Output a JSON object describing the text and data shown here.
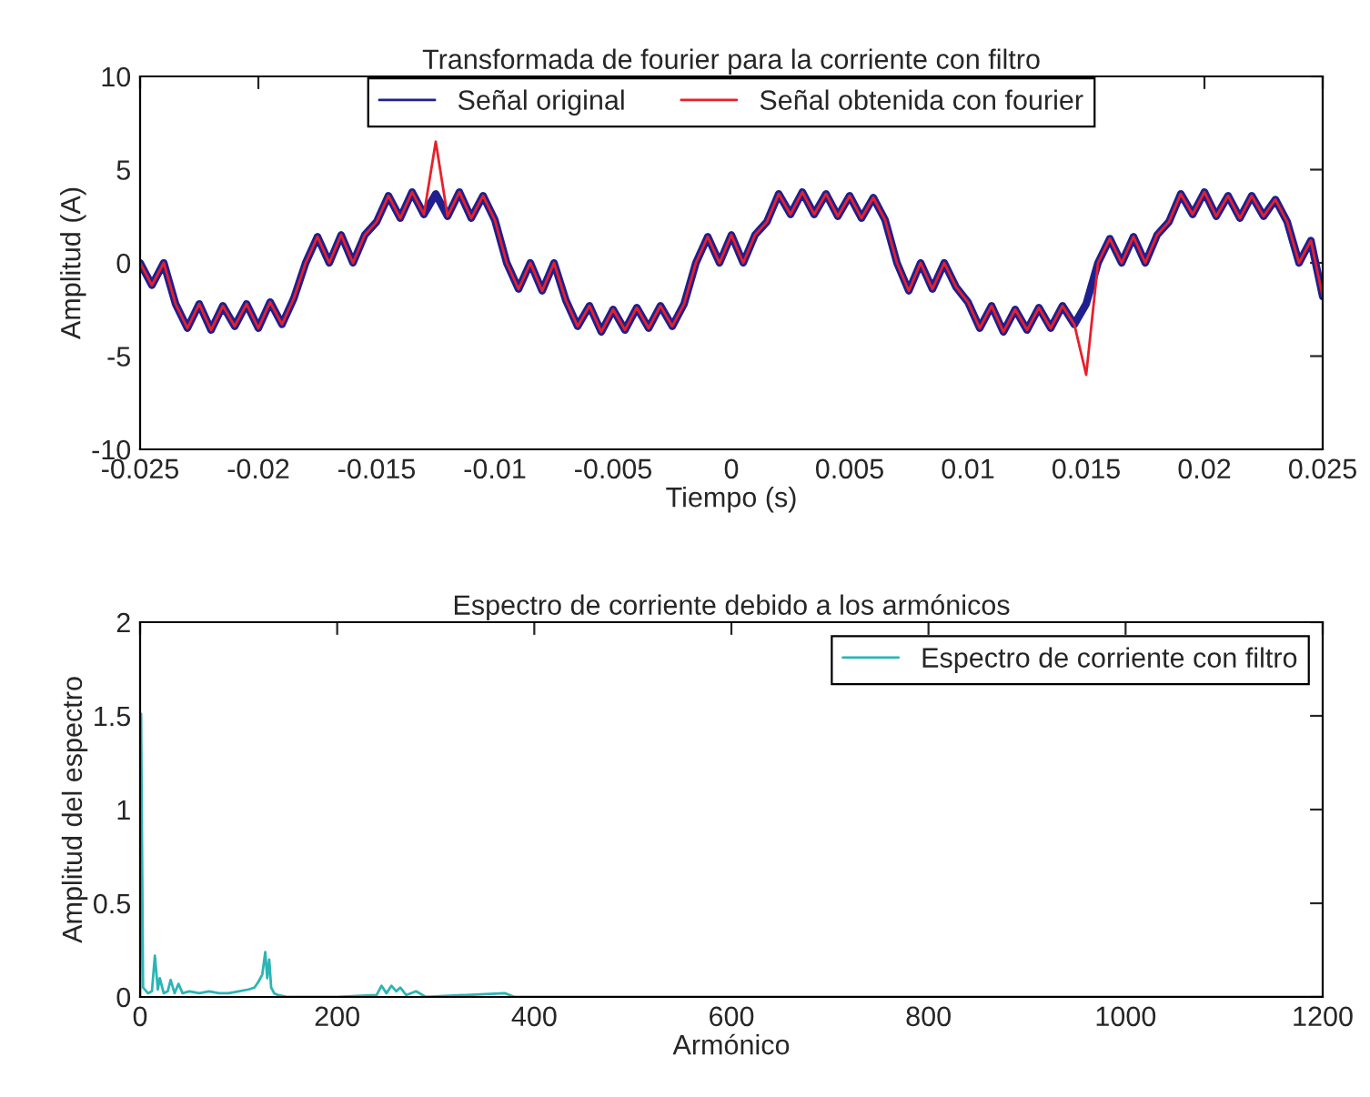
{
  "chart_data": [
    {
      "type": "line",
      "title": "Transformada de fourier para la corriente con filtro",
      "xlabel": "Tiempo (s)",
      "ylabel": "Amplitud (A)",
      "x": [
        -0.025,
        -0.0245,
        -0.024,
        -0.0235,
        -0.023,
        -0.0225,
        -0.022,
        -0.0215,
        -0.021,
        -0.0205,
        -0.02,
        -0.0195,
        -0.019,
        -0.0185,
        -0.018,
        -0.0175,
        -0.017,
        -0.0165,
        -0.016,
        -0.0155,
        -0.015,
        -0.0145,
        -0.014,
        -0.0135,
        -0.013,
        -0.0125,
        -0.012,
        -0.0115,
        -0.011,
        -0.0105,
        -0.01,
        -0.0095,
        -0.009,
        -0.0085,
        -0.008,
        -0.0075,
        -0.007,
        -0.0065,
        -0.006,
        -0.0055,
        -0.005,
        -0.0045,
        -0.004,
        -0.0035,
        -0.003,
        -0.0025,
        -0.002,
        -0.0015,
        -0.001,
        -0.0005,
        0,
        0.0005,
        0.001,
        0.0015,
        0.002,
        0.0025,
        0.003,
        0.0035,
        0.004,
        0.0045,
        0.005,
        0.0055,
        0.006,
        0.0065,
        0.007,
        0.0075,
        0.008,
        0.0085,
        0.009,
        0.0095,
        0.01,
        0.0105,
        0.011,
        0.0115,
        0.012,
        0.0125,
        0.013,
        0.0135,
        0.014,
        0.0145,
        0.015,
        0.0155,
        0.016,
        0.0165,
        0.017,
        0.0175,
        0.018,
        0.0185,
        0.019,
        0.0195,
        0.02,
        0.0205,
        0.021,
        0.0215,
        0.022,
        0.0225,
        0.023,
        0.0235,
        0.024,
        0.0245,
        0.025
      ],
      "series": [
        {
          "name": "Señal original",
          "color": "#1f1f8f",
          "values": [
            0,
            -1.2,
            0,
            -2.2,
            -3.5,
            -2.2,
            -3.6,
            -2.3,
            -3.4,
            -2.2,
            -3.5,
            -2.1,
            -3.3,
            -1.9,
            0,
            1.4,
            0,
            1.5,
            0,
            1.5,
            2.2,
            3.6,
            2.4,
            3.8,
            2.6,
            3.7,
            2.5,
            3.8,
            2.4,
            3.6,
            2.3,
            0,
            -1.4,
            0,
            -1.5,
            0,
            -2.0,
            -3.4,
            -2.3,
            -3.7,
            -2.5,
            -3.6,
            -2.4,
            -3.5,
            -2.3,
            -3.4,
            -2.2,
            0,
            1.4,
            0,
            1.5,
            0,
            1.5,
            2.2,
            3.7,
            2.6,
            3.8,
            2.6,
            3.7,
            2.5,
            3.6,
            2.4,
            3.5,
            2.3,
            0,
            -1.5,
            0,
            -1.4,
            0,
            -1.3,
            -2.1,
            -3.5,
            -2.3,
            -3.7,
            -2.5,
            -3.6,
            -2.4,
            -3.5,
            -2.3,
            -3.3,
            -2.2,
            0,
            1.3,
            0,
            1.4,
            0,
            1.5,
            2.2,
            3.7,
            2.6,
            3.8,
            2.5,
            3.6,
            2.4,
            3.6,
            2.5,
            3.4,
            2.2,
            0,
            1.2,
            -1.8
          ]
        },
        {
          "name": "Señal obtenida con fourier",
          "color": "#e8202a",
          "values": [
            0,
            -1.2,
            0,
            -2.2,
            -3.5,
            -2.2,
            -3.6,
            -2.3,
            -3.4,
            -2.2,
            -3.5,
            -2.1,
            -3.3,
            -1.9,
            0,
            1.4,
            0,
            1.5,
            0,
            1.5,
            2.2,
            3.6,
            2.4,
            3.8,
            2.6,
            6.5,
            2.5,
            3.8,
            2.4,
            3.6,
            2.3,
            0,
            -1.4,
            0,
            -1.5,
            0,
            -2.0,
            -3.4,
            -2.3,
            -3.7,
            -2.5,
            -3.6,
            -2.4,
            -3.5,
            -2.3,
            -3.4,
            -2.2,
            0,
            1.4,
            0,
            1.5,
            0,
            1.5,
            2.2,
            3.7,
            2.6,
            3.8,
            2.6,
            3.7,
            2.5,
            3.6,
            2.4,
            3.5,
            2.3,
            0,
            -1.5,
            0,
            -1.4,
            0,
            -1.3,
            -2.1,
            -3.5,
            -2.3,
            -3.7,
            -2.5,
            -3.6,
            -2.4,
            -3.5,
            -2.3,
            -3.3,
            -6.0,
            0,
            1.3,
            0,
            1.4,
            0,
            1.5,
            2.2,
            3.7,
            2.6,
            3.8,
            2.5,
            3.6,
            2.4,
            3.6,
            2.5,
            3.4,
            2.2,
            0,
            1.2,
            -1.8
          ]
        }
      ],
      "xlim": [
        -0.025,
        0.025
      ],
      "xticks": [
        -0.025,
        -0.02,
        -0.015,
        -0.01,
        -0.005,
        0,
        0.005,
        0.01,
        0.015,
        0.02,
        0.025
      ],
      "ylim": [
        -10,
        10
      ],
      "yticks": [
        -10,
        -5,
        0,
        5,
        10
      ],
      "legend": "top",
      "grid": false
    },
    {
      "type": "line",
      "title": "Espectro de corriente debido a los armónicos",
      "xlabel": "Armónico",
      "ylabel": "Amplitud del espectro",
      "series": [
        {
          "name": "Espectro de corriente con filtro",
          "color": "#2bb5b5",
          "x": [
            0,
            1,
            3,
            8,
            12,
            15,
            18,
            20,
            24,
            28,
            31,
            35,
            39,
            43,
            50,
            60,
            70,
            80,
            90,
            100,
            110,
            116,
            120,
            124,
            127,
            129,
            131,
            133,
            136,
            140,
            150,
            200,
            240,
            245,
            250,
            255,
            260,
            264,
            270,
            280,
            290,
            370,
            380,
            600,
            1200
          ],
          "values": [
            0,
            1.51,
            0.05,
            0.02,
            0.03,
            0.22,
            0.04,
            0.1,
            0.02,
            0.03,
            0.09,
            0.02,
            0.07,
            0.02,
            0.03,
            0.02,
            0.03,
            0.02,
            0.02,
            0.03,
            0.04,
            0.05,
            0.08,
            0.12,
            0.24,
            0.1,
            0.2,
            0.05,
            0.02,
            0.01,
            0,
            0,
            0.01,
            0.06,
            0.02,
            0.06,
            0.03,
            0.05,
            0.01,
            0.03,
            0,
            0.02,
            0,
            0,
            0
          ]
        }
      ],
      "xlim": [
        0,
        1200
      ],
      "xticks": [
        0,
        200,
        400,
        600,
        800,
        1000,
        1200
      ],
      "ylim": [
        0,
        2
      ],
      "yticks": [
        0,
        0.5,
        1,
        1.5,
        2
      ],
      "legend": "top right",
      "grid": false
    }
  ]
}
